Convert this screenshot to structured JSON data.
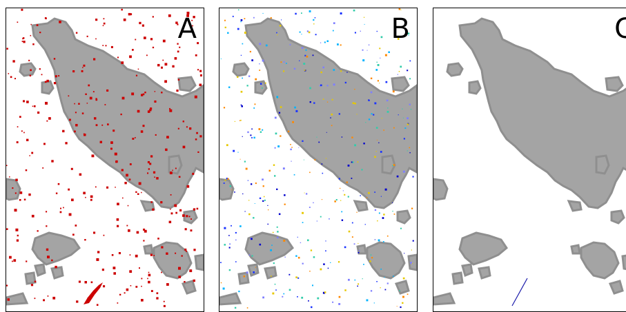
{
  "panels": [
    {
      "label": "A",
      "overlay": "red"
    },
    {
      "label": "B",
      "overlay": "multicolor"
    },
    {
      "label": "C",
      "overlay": "blue"
    }
  ],
  "colors": {
    "land_fill": "#a4a4a4",
    "land_edge": "#8f8f8f",
    "frame": "#000000",
    "background": "#ffffff",
    "overlay_red": "#cc0000",
    "overlay_b": [
      "#0000cc",
      "#1a33ff",
      "#00b3ff",
      "#33ccaa",
      "#e6c800",
      "#ff8800",
      "#7f7fff"
    ],
    "overlay_blue": "#1a1aaa"
  }
}
